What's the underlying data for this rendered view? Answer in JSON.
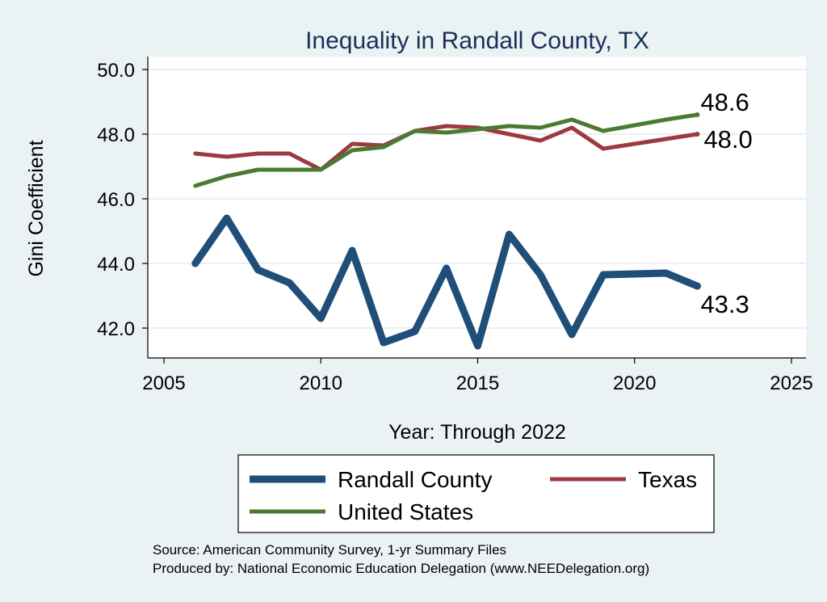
{
  "chart_data": {
    "type": "line",
    "title": "Inequality in Randall County, TX",
    "xlabel": "Year: Through 2022",
    "ylabel": "Gini Coefficient",
    "xlim": [
      2005,
      2025
    ],
    "ylim": [
      41,
      50.5
    ],
    "x_ticks": [
      "2005",
      "2010",
      "2015",
      "2020",
      "2025"
    ],
    "y_ticks": [
      "42.0",
      "44.0",
      "46.0",
      "48.0",
      "50.0"
    ],
    "grid": true,
    "legend_position": "bottom",
    "series": [
      {
        "name": "Randall County",
        "color": "#1f4e79",
        "x": [
          2006,
          2007,
          2008,
          2009,
          2010,
          2011,
          2012,
          2013,
          2014,
          2015,
          2016,
          2017,
          2018,
          2019,
          2021,
          2022
        ],
        "values": [
          44.0,
          45.4,
          43.8,
          43.4,
          42.3,
          44.4,
          41.55,
          41.9,
          43.85,
          41.45,
          44.9,
          43.65,
          41.8,
          43.65,
          43.7,
          43.3
        ],
        "end_label": "43.3"
      },
      {
        "name": "Texas",
        "color": "#9c3a3f",
        "x": [
          2006,
          2007,
          2008,
          2009,
          2010,
          2011,
          2012,
          2013,
          2014,
          2015,
          2016,
          2017,
          2018,
          2019,
          2021,
          2022
        ],
        "values": [
          47.4,
          47.3,
          47.4,
          47.4,
          46.9,
          47.7,
          47.65,
          48.1,
          48.25,
          48.2,
          48.0,
          47.8,
          48.2,
          47.55,
          47.85,
          48.0
        ],
        "end_label": "48.0"
      },
      {
        "name": "United States",
        "color": "#4d7a33",
        "x": [
          2006,
          2007,
          2008,
          2009,
          2010,
          2011,
          2012,
          2013,
          2014,
          2015,
          2016,
          2017,
          2018,
          2019,
          2021,
          2022
        ],
        "values": [
          46.4,
          46.7,
          46.9,
          46.9,
          46.9,
          47.5,
          47.6,
          48.1,
          48.05,
          48.15,
          48.25,
          48.2,
          48.45,
          48.1,
          48.45,
          48.6
        ],
        "end_label": "48.6"
      }
    ],
    "source_lines": [
      "Source: American Community Survey, 1-yr Summary Files",
      "Produced by: National Economic Education Delegation (www.NEEDelegation.org)"
    ]
  }
}
